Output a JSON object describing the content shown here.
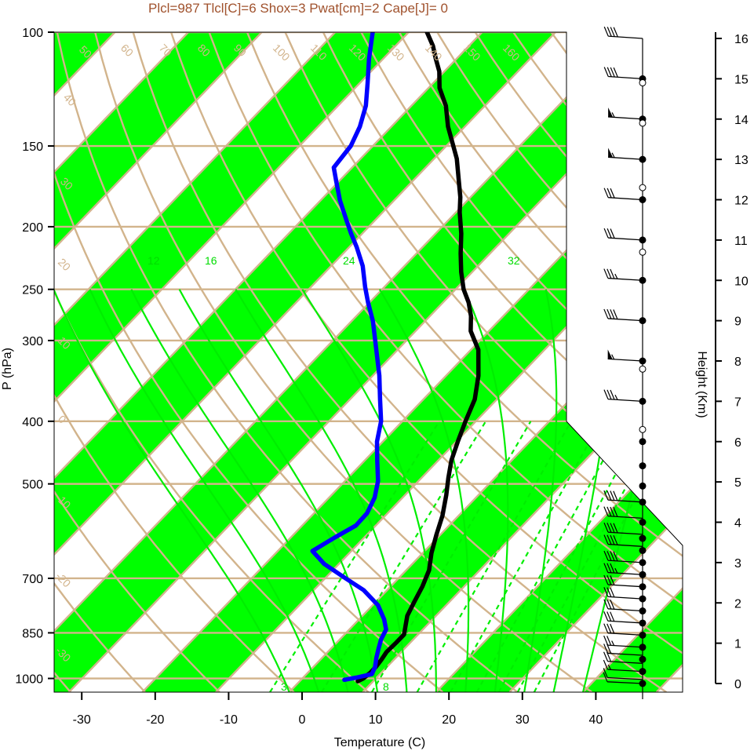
{
  "title": "Plcl=987 Tlcl[C]=6 Shox=3 Pwat[cm]=2 Cape[J]= 0",
  "colors": {
    "band": "#00ff00",
    "isoline": "#d2b48c",
    "mixing": "#00ee00",
    "temperature": "#000000",
    "dewpoint": "#0000ff",
    "title": "#a0522d"
  },
  "chart_data": {
    "type": "line",
    "xlabel": "Temperature (C)",
    "ylabel": "P (hPa)",
    "y2label": "Height (Km)",
    "xlim": [
      -34,
      36
    ],
    "ylim": [
      1050,
      100
    ],
    "pressure_ticks": [
      100,
      150,
      200,
      250,
      300,
      400,
      500,
      700,
      850,
      1000
    ],
    "pressure_tick_labels": [
      "100",
      "150",
      "200",
      "250",
      "300",
      "400",
      "500",
      "700",
      "850",
      "1000"
    ],
    "temp_ticks": [
      -30,
      -20,
      -10,
      0,
      10,
      20,
      30,
      40
    ],
    "temp_tick_labels": [
      "-30",
      "-20",
      "-10",
      "0",
      "10",
      "20",
      "30",
      "40"
    ],
    "height_ticks": [
      0,
      1,
      2,
      3,
      4,
      5,
      6,
      7,
      8,
      9,
      10,
      11,
      12,
      13,
      14,
      15,
      16
    ],
    "height_tick_labels": [
      "0",
      "1",
      "2",
      "3",
      "4",
      "5",
      "6",
      "7",
      "8",
      "9",
      "10",
      "11",
      "12",
      "13",
      "14",
      "15",
      "16"
    ],
    "isotherm_labels": [
      "-30",
      "-20",
      "-10",
      "0",
      "10",
      "20",
      "30"
    ],
    "theta_labels": [
      "40",
      "50",
      "60",
      "70",
      "80",
      "90",
      "100",
      "110",
      "120",
      "130",
      "140",
      "150",
      "160"
    ],
    "theta_left_labels": [
      "30",
      "20",
      "10",
      "0",
      "-10",
      "-20",
      "-30"
    ],
    "mixing_ratio_labels": [
      "12",
      "16",
      "24",
      "32"
    ],
    "mixing_ratio_bottom_labels": [
      "3",
      "8"
    ],
    "series": [
      {
        "key": "temperature",
        "points": [
          [
            7.9,
            1010
          ],
          [
            8.3,
            1000
          ],
          [
            8.5,
            980
          ],
          [
            8.5,
            960
          ],
          [
            8.3,
            935
          ],
          [
            8.0,
            910
          ],
          [
            8.1,
            880
          ],
          [
            8.1,
            855
          ],
          [
            7.2,
            830
          ],
          [
            6.1,
            800
          ],
          [
            5.2,
            760
          ],
          [
            4.3,
            720
          ],
          [
            3.1,
            680
          ],
          [
            1.2,
            640
          ],
          [
            -0.5,
            600
          ],
          [
            -2.2,
            560
          ],
          [
            -4.4,
            520
          ],
          [
            -6.3,
            490
          ],
          [
            -8.2,
            460
          ],
          [
            -9.8,
            430
          ],
          [
            -11.4,
            400
          ],
          [
            -13.0,
            370
          ],
          [
            -15.6,
            340
          ],
          [
            -19.0,
            310
          ],
          [
            -22.5,
            290
          ],
          [
            -24.4,
            275
          ],
          [
            -26.5,
            262
          ],
          [
            -28.9,
            250
          ],
          [
            -31.5,
            235
          ],
          [
            -34.0,
            220
          ],
          [
            -36.5,
            205
          ],
          [
            -39.5,
            190
          ],
          [
            -41.4,
            180
          ],
          [
            -43.7,
            170
          ],
          [
            -46.9,
            157
          ],
          [
            -50.0,
            147
          ],
          [
            -52.3,
            140
          ],
          [
            -55.3,
            130
          ],
          [
            -58.5,
            122
          ],
          [
            -60.7,
            115
          ],
          [
            -62.8,
            110
          ],
          [
            -64.9,
            105
          ],
          [
            -67.5,
            100
          ]
        ]
      },
      {
        "key": "dewpoint",
        "points": [
          [
            5.9,
            1005
          ],
          [
            7.2,
            997
          ],
          [
            8.9,
            985
          ],
          [
            8.4,
            960
          ],
          [
            7.4,
            930
          ],
          [
            6.5,
            900
          ],
          [
            5.6,
            870
          ],
          [
            5.0,
            840
          ],
          [
            3.4,
            810
          ],
          [
            0.7,
            770
          ],
          [
            -3.2,
            730
          ],
          [
            -7.2,
            700
          ],
          [
            -12.0,
            665
          ],
          [
            -15.3,
            635
          ],
          [
            -14.0,
            605
          ],
          [
            -12.7,
            580
          ],
          [
            -12.8,
            555
          ],
          [
            -13.8,
            525
          ],
          [
            -15.5,
            495
          ],
          [
            -18.3,
            460
          ],
          [
            -20.8,
            430
          ],
          [
            -22.9,
            400
          ],
          [
            -25.9,
            370
          ],
          [
            -29.1,
            340
          ],
          [
            -32.9,
            310
          ],
          [
            -37.1,
            280
          ],
          [
            -40.2,
            262
          ],
          [
            -42.6,
            248
          ],
          [
            -45.7,
            230
          ],
          [
            -49.0,
            215
          ],
          [
            -51.5,
            205
          ],
          [
            -54.0,
            195
          ],
          [
            -57.4,
            182
          ],
          [
            -60.4,
            170
          ],
          [
            -62.5,
            162
          ],
          [
            -63.0,
            150
          ],
          [
            -64.3,
            140
          ],
          [
            -66.2,
            130
          ],
          [
            -68.9,
            120
          ],
          [
            -71.9,
            110
          ],
          [
            -74.9,
            100
          ]
        ]
      }
    ],
    "wind_barb_heights": [
      0,
      0.2,
      0.4,
      0.6,
      0.8,
      1,
      1.2,
      1.4,
      1.6,
      1.8,
      2,
      2.3,
      2.6,
      2.9,
      3.2,
      3.6,
      4,
      4.5,
      5,
      5.5,
      6,
      7,
      8,
      9,
      10,
      11,
      12,
      13,
      14,
      15,
      16
    ],
    "wind_barbs": [
      {
        "h": 0,
        "dir": 200,
        "spd": 10
      },
      {
        "h": 0.1,
        "dir": 220,
        "spd": 12
      },
      {
        "h": 0.3,
        "dir": 230,
        "spd": 15
      },
      {
        "h": 0.5,
        "dir": 240,
        "spd": 20
      },
      {
        "h": 0.7,
        "dir": 245,
        "spd": 22
      },
      {
        "h": 0.9,
        "dir": 245,
        "spd": 25
      },
      {
        "h": 1.2,
        "dir": 250,
        "spd": 30
      },
      {
        "h": 1.5,
        "dir": 250,
        "spd": 30
      },
      {
        "h": 1.8,
        "dir": 255,
        "spd": 30
      },
      {
        "h": 2.1,
        "dir": 255,
        "spd": 30
      },
      {
        "h": 2.4,
        "dir": 255,
        "spd": 30
      },
      {
        "h": 2.7,
        "dir": 255,
        "spd": 35
      },
      {
        "h": 3.0,
        "dir": 260,
        "spd": 40
      },
      {
        "h": 3.4,
        "dir": 260,
        "spd": 40
      },
      {
        "h": 3.7,
        "dir": 260,
        "spd": 40
      },
      {
        "h": 4.1,
        "dir": 255,
        "spd": 40
      },
      {
        "h": 4.5,
        "dir": 255,
        "spd": 40
      },
      {
        "h": 7.0,
        "dir": 260,
        "spd": 35
      },
      {
        "h": 8.0,
        "dir": 245,
        "spd": 55
      },
      {
        "h": 9.0,
        "dir": 255,
        "spd": 40
      },
      {
        "h": 10.0,
        "dir": 255,
        "spd": 35
      },
      {
        "h": 11.0,
        "dir": 265,
        "spd": 30
      },
      {
        "h": 12.0,
        "dir": 265,
        "spd": 30
      },
      {
        "h": 13.0,
        "dir": 265,
        "spd": 55
      },
      {
        "h": 14.0,
        "dir": 265,
        "spd": 55
      },
      {
        "h": 15.0,
        "dir": 270,
        "spd": 40
      },
      {
        "h": 16.0,
        "dir": 270,
        "spd": 40
      }
    ],
    "height_points_filled": [
      0,
      0.3,
      0.6,
      0.9,
      1.2,
      1.5,
      1.8,
      2.1,
      2.4,
      2.7,
      3.0,
      3.3,
      3.6,
      4.0,
      4.5,
      4.9,
      5.4,
      6.0,
      7.0,
      8.0,
      9.0,
      10.0,
      11.0,
      12.0,
      13.0,
      14.0,
      15.0
    ],
    "height_points_open": [
      6.3,
      7.8,
      10.7,
      12.3,
      13.9,
      14.9
    ]
  }
}
